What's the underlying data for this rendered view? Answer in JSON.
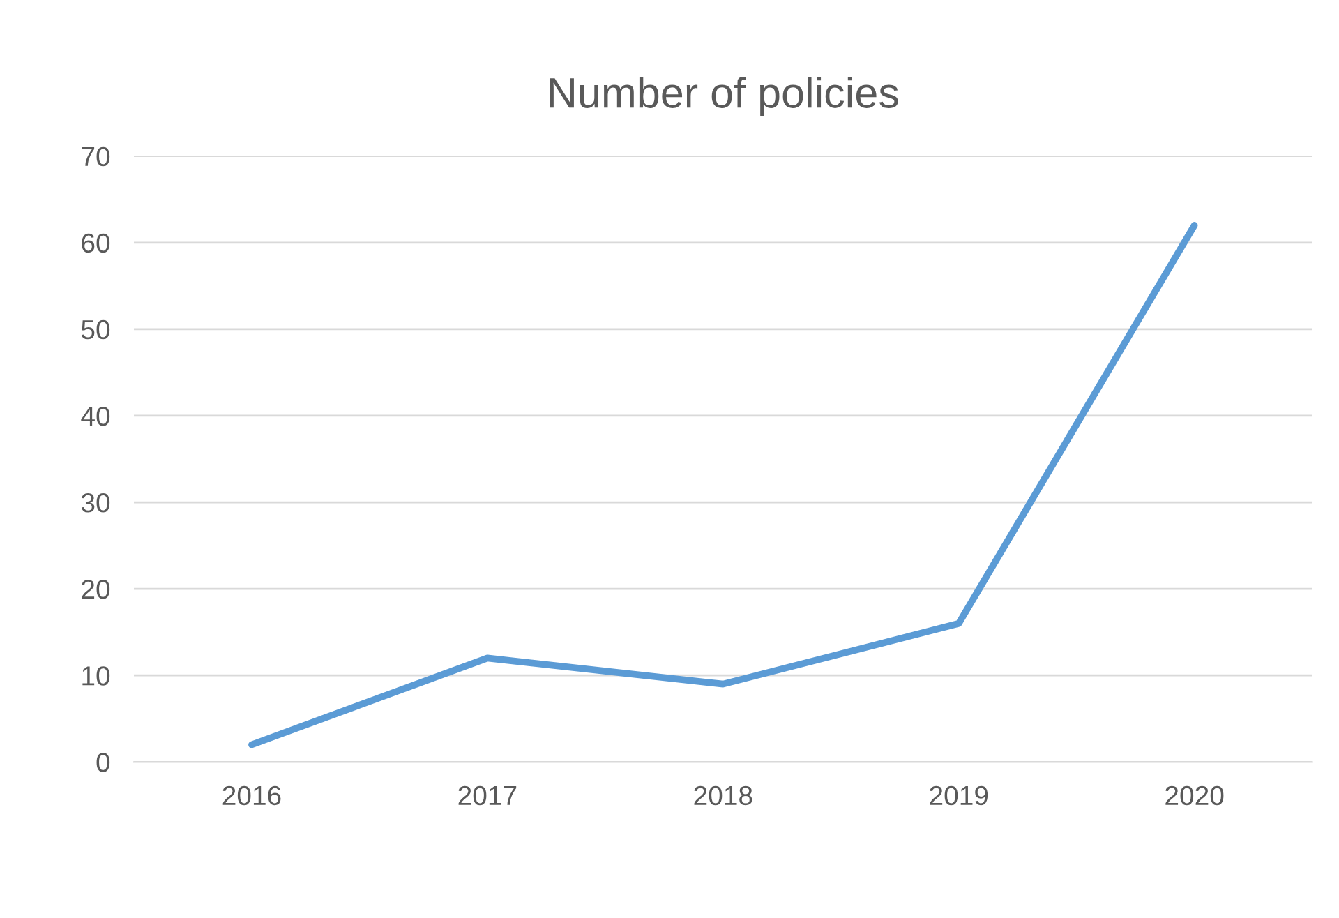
{
  "chart_data": {
    "type": "line",
    "title": "Number of policies",
    "categories": [
      "2016",
      "2017",
      "2018",
      "2019",
      "2020"
    ],
    "series": [
      {
        "color": "#5b9bd5",
        "values": [
          2,
          12,
          9,
          16,
          62
        ]
      }
    ],
    "ylim": [
      0,
      70
    ],
    "yticks": [
      0,
      10,
      20,
      30,
      40,
      50,
      60,
      70
    ],
    "grid": "y",
    "marker": "none"
  }
}
